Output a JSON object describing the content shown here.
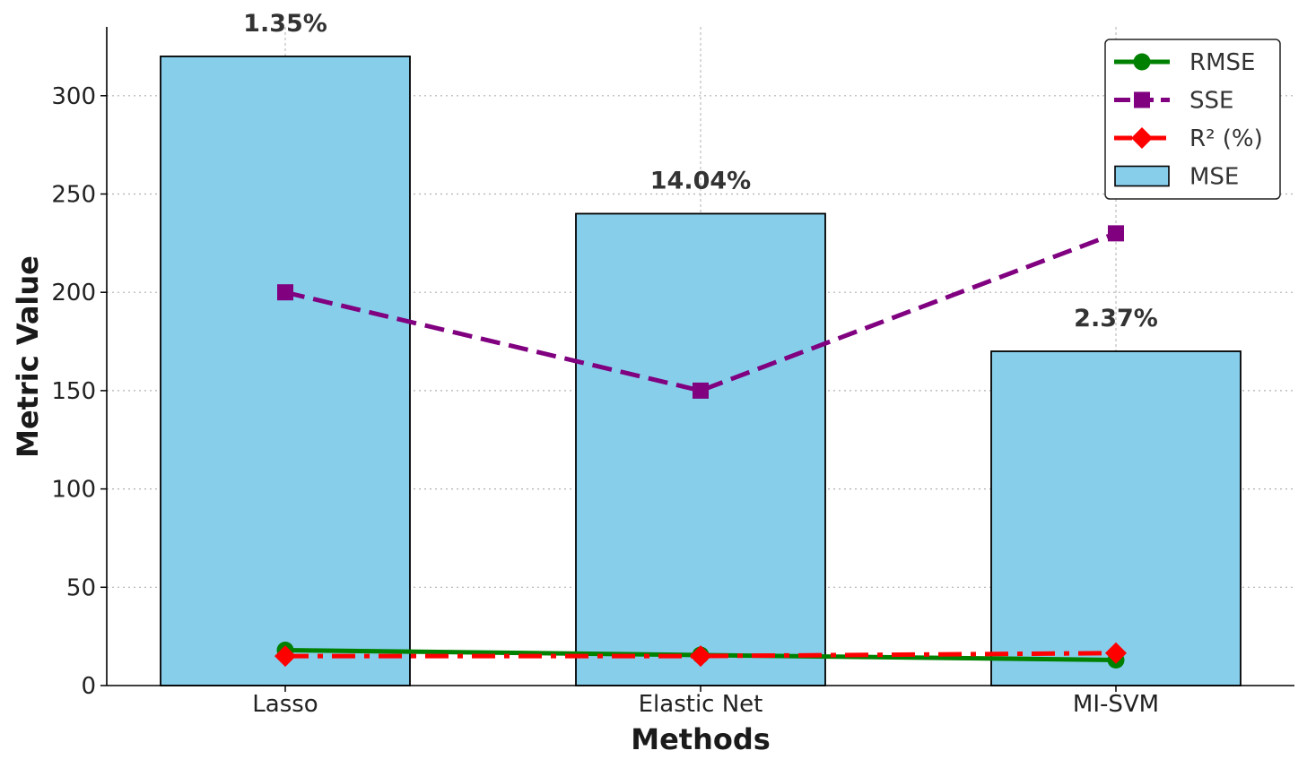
{
  "chart_data": {
    "type": "bar",
    "categories": [
      "Lasso",
      "Elastic Net",
      "MI-SVM"
    ],
    "xlabel": "Methods",
    "ylabel": "Metric Value",
    "ylim": [
      0,
      335
    ],
    "yticks": [
      0,
      50,
      100,
      150,
      200,
      250,
      300
    ],
    "grid": true,
    "legend_position": "top-right",
    "bar_series": {
      "name": "MSE",
      "values": [
        320,
        240,
        170
      ],
      "color": "#87CEEB",
      "edge_color": "#000000",
      "data_labels": [
        "1.35%",
        "14.04%",
        "2.37%"
      ]
    },
    "series": [
      {
        "name": "RMSE",
        "values": [
          18,
          15.5,
          13
        ],
        "color": "#008000",
        "marker": "circle",
        "linestyle": "solid"
      },
      {
        "name": "SSE",
        "values": [
          200,
          150,
          230
        ],
        "color": "#800080",
        "marker": "square",
        "linestyle": "dashed"
      },
      {
        "name": "R² (%)",
        "values": [
          15,
          15,
          16.5
        ],
        "color": "#ff0000",
        "marker": "diamond",
        "linestyle": "dashdot"
      }
    ]
  }
}
